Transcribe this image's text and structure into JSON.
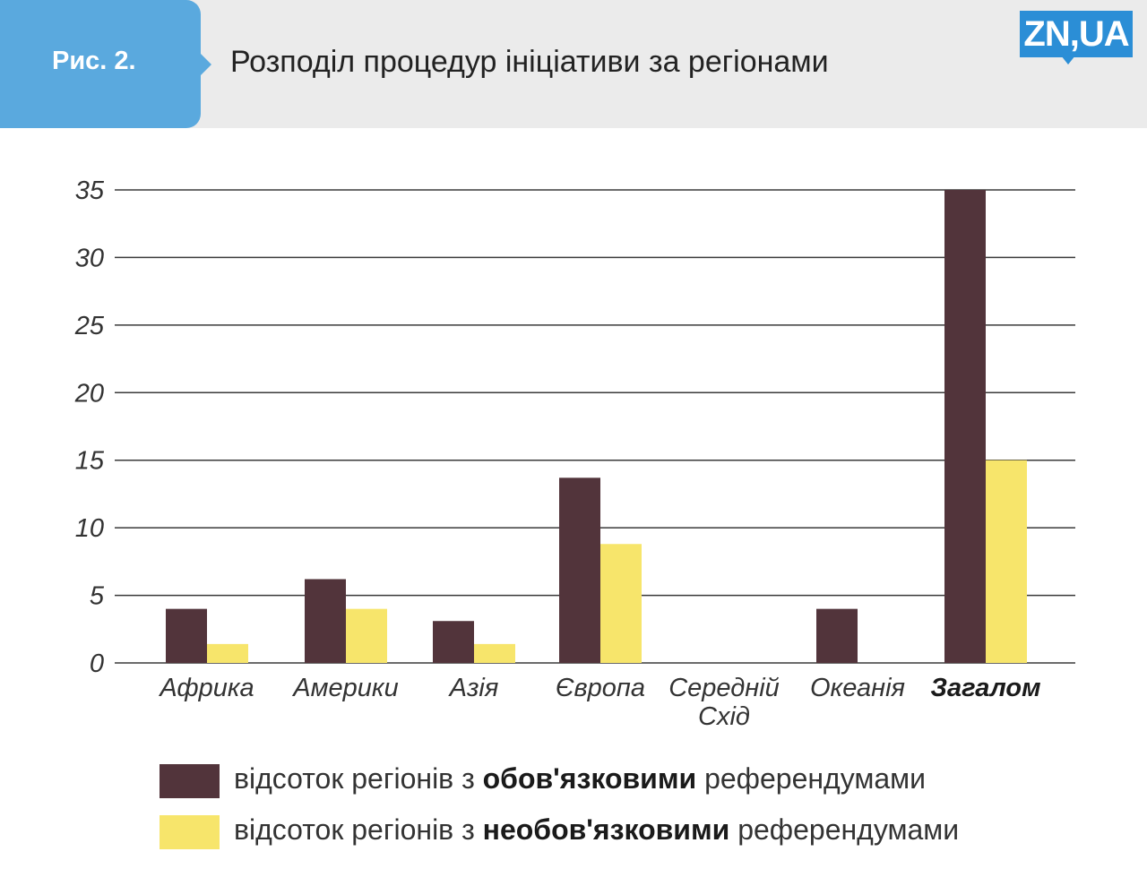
{
  "header": {
    "figure_label": "Рис. 2.",
    "title": "Розподіл процедур ініціативи за регіонами",
    "logo_text": "ZN,UA"
  },
  "chart_data": {
    "type": "bar",
    "categories": [
      "Африка",
      "Америки",
      "Азія",
      "Європа",
      "Середній Схід",
      "Океанія",
      "Загалом"
    ],
    "category_lines": [
      [
        "Африка"
      ],
      [
        "Америки"
      ],
      [
        "Азія"
      ],
      [
        "Європа"
      ],
      [
        "Середній",
        "Схід"
      ],
      [
        "Океанія"
      ],
      [
        "Загалом"
      ]
    ],
    "bold_categories": [
      "Загалом"
    ],
    "series": [
      {
        "name": "відсоток регіонів з обов'язковими референдумами",
        "values": [
          4,
          6.2,
          3.1,
          13.7,
          0,
          4,
          35
        ],
        "color": "#52343b"
      },
      {
        "name": "відсоток регіонів з необов'язковими референдумами",
        "values": [
          1.4,
          4,
          1.4,
          8.8,
          0,
          0,
          15
        ],
        "color": "#f7e56b"
      }
    ],
    "yticks": [
      "0",
      "5",
      "10",
      "15",
      "20",
      "25",
      "30",
      "35"
    ],
    "ylim": [
      0,
      35
    ],
    "grid": true,
    "legend_position": "bottom"
  },
  "legend": [
    {
      "pre": "відсоток  регіонів з ",
      "bold": "обов'язковими",
      "post": " референдумами",
      "color": "#52343b"
    },
    {
      "pre": "відсоток регіонів з ",
      "bold": "необов'язковими",
      "post": " референдумами",
      "color": "#f7e56b"
    }
  ]
}
